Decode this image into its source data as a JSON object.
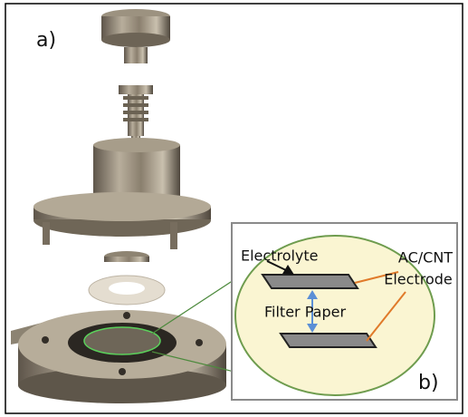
{
  "panel_labels": {
    "a": "a)",
    "b": "b)"
  },
  "inset": {
    "electrolyte": "Electrolyte",
    "electrode": [
      "AC/CNT",
      "Electrode"
    ],
    "filter_paper": "Filter Paper"
  }
}
